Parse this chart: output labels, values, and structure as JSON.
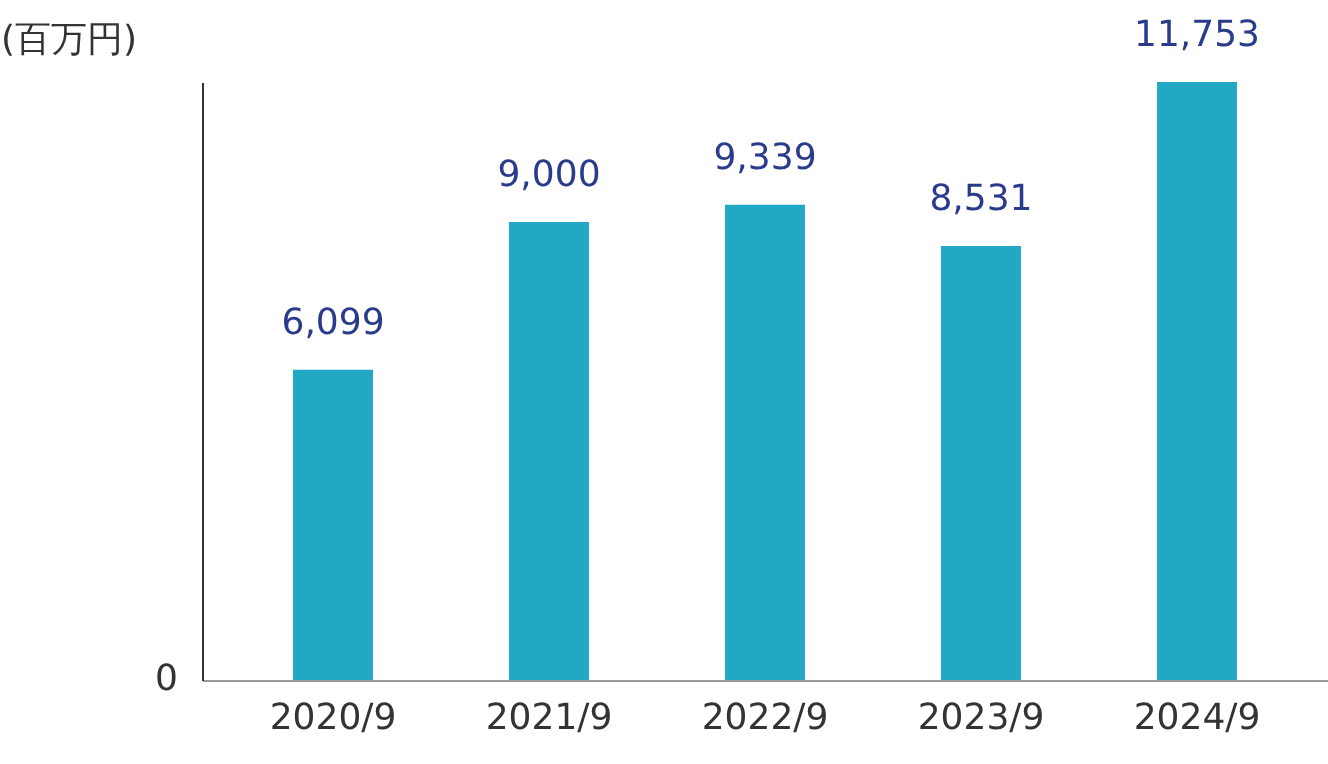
{
  "chart_data": {
    "type": "bar",
    "ylabel": "(百万円)",
    "categories": [
      "2020/9",
      "2021/9",
      "2022/9",
      "2023/9",
      "2024/9"
    ],
    "values": [
      6099,
      9000,
      9339,
      8531,
      11753
    ],
    "value_labels": [
      "6,099",
      "9,000",
      "9,339",
      "8,531",
      "11,753"
    ],
    "color": "#20a8c4",
    "annotations": [
      "0"
    ]
  }
}
